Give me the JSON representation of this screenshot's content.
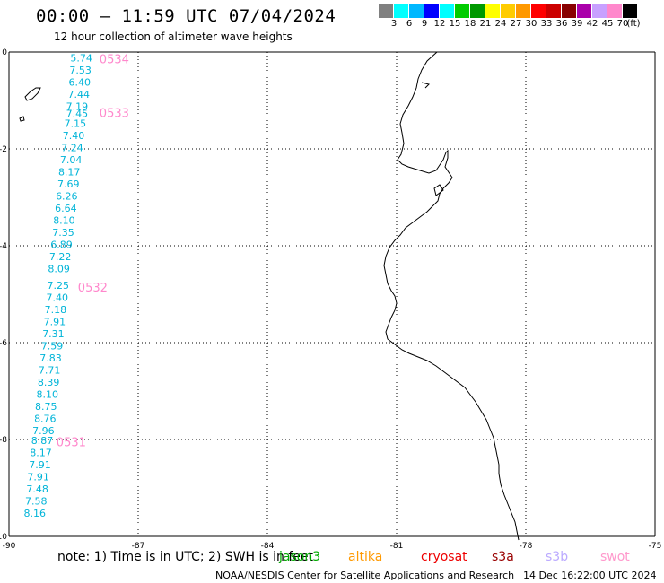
{
  "header": {
    "title": "00:00 – 11:59 UTC 07/04/2024",
    "subtitle": "12 hour collection of altimeter wave heights"
  },
  "legend": {
    "colors": [
      "#808080",
      "#00ffff",
      "#00b8ff",
      "#0000ff",
      "#00ffff",
      "#00cc00",
      "#009900",
      "#ffff00",
      "#ffcc00",
      "#ff9900",
      "#ff0000",
      "#cc0000",
      "#880000",
      "#aa00aa",
      "#c8a0ff",
      "#ff88cc",
      "#000000"
    ],
    "labels": [
      "3",
      "6",
      "9",
      "12",
      "15",
      "18",
      "21",
      "24",
      "27",
      "30",
      "33",
      "36",
      "39",
      "42",
      "45",
      "70",
      "(ft)"
    ]
  },
  "axes": {
    "x_ticks": [
      "-90",
      "-87",
      "-84",
      "-81",
      "-78",
      "-75"
    ],
    "y_ticks": [
      "0",
      "-2",
      "-4",
      "-6",
      "-8",
      "-10"
    ]
  },
  "track": {
    "color": "#00b4d8",
    "points": [
      {
        "lon": -88.32,
        "lat": -0.1,
        "v": "5.74"
      },
      {
        "lon": -88.34,
        "lat": -0.35,
        "v": "7.53"
      },
      {
        "lon": -88.36,
        "lat": -0.6,
        "v": "6.40"
      },
      {
        "lon": -88.38,
        "lat": -0.85,
        "v": "7.44"
      },
      {
        "lon": -88.42,
        "lat": -1.1,
        "v": "7.19"
      },
      {
        "lon": -88.42,
        "lat": -1.25,
        "v": "7.45"
      },
      {
        "lon": -88.46,
        "lat": -1.45,
        "v": "7.15"
      },
      {
        "lon": -88.5,
        "lat": -1.7,
        "v": "7.40"
      },
      {
        "lon": -88.53,
        "lat": -1.95,
        "v": "7.24"
      },
      {
        "lon": -88.56,
        "lat": -2.2,
        "v": "7.04"
      },
      {
        "lon": -88.6,
        "lat": -2.45,
        "v": "8.17"
      },
      {
        "lon": -88.62,
        "lat": -2.7,
        "v": "7.69"
      },
      {
        "lon": -88.66,
        "lat": -2.95,
        "v": "6.26"
      },
      {
        "lon": -88.68,
        "lat": -3.2,
        "v": "6.64"
      },
      {
        "lon": -88.72,
        "lat": -3.45,
        "v": "8.10"
      },
      {
        "lon": -88.74,
        "lat": -3.7,
        "v": "7.35"
      },
      {
        "lon": -88.78,
        "lat": -3.95,
        "v": "6.89"
      },
      {
        "lon": -88.81,
        "lat": -4.2,
        "v": "7.22"
      },
      {
        "lon": -88.84,
        "lat": -4.45,
        "v": "8.09"
      },
      {
        "lon": -88.86,
        "lat": -4.8,
        "v": "7.25"
      },
      {
        "lon": -88.88,
        "lat": -5.05,
        "v": "7.40"
      },
      {
        "lon": -88.92,
        "lat": -5.3,
        "v": "7.18"
      },
      {
        "lon": -88.94,
        "lat": -5.55,
        "v": "7.91"
      },
      {
        "lon": -88.97,
        "lat": -5.8,
        "v": "7.31"
      },
      {
        "lon": -89.0,
        "lat": -6.05,
        "v": "7.59"
      },
      {
        "lon": -89.03,
        "lat": -6.3,
        "v": "7.83"
      },
      {
        "lon": -89.06,
        "lat": -6.55,
        "v": "7.71"
      },
      {
        "lon": -89.08,
        "lat": -6.8,
        "v": "8.39"
      },
      {
        "lon": -89.11,
        "lat": -7.05,
        "v": "8.10"
      },
      {
        "lon": -89.14,
        "lat": -7.3,
        "v": "8.75"
      },
      {
        "lon": -89.16,
        "lat": -7.55,
        "v": "8.76"
      },
      {
        "lon": -89.2,
        "lat": -7.8,
        "v": "7.96"
      },
      {
        "lon": -89.23,
        "lat": -8.0,
        "v": "8.87"
      },
      {
        "lon": -89.26,
        "lat": -8.25,
        "v": "8.17"
      },
      {
        "lon": -89.28,
        "lat": -8.5,
        "v": "7.91"
      },
      {
        "lon": -89.32,
        "lat": -8.75,
        "v": "7.91"
      },
      {
        "lon": -89.34,
        "lat": -9.0,
        "v": "7.48"
      },
      {
        "lon": -89.37,
        "lat": -9.25,
        "v": "7.58"
      },
      {
        "lon": -89.4,
        "lat": -9.5,
        "v": "8.16"
      }
    ]
  },
  "time_labels": {
    "color": "#ff88cc",
    "items": [
      {
        "lon": -87.9,
        "lat": -0.12,
        "t": "0534"
      },
      {
        "lon": -87.9,
        "lat": -1.23,
        "t": "0533"
      },
      {
        "lon": -88.4,
        "lat": -4.83,
        "t": "0532"
      },
      {
        "lon": -88.9,
        "lat": -8.03,
        "t": "0531"
      }
    ]
  },
  "footer": {
    "note": "note:  1) Time is in UTC; 2) SWH is in feet",
    "missions": [
      {
        "name": "jason3",
        "color": "#00aa00"
      },
      {
        "name": "altika",
        "color": "#ff9900"
      },
      {
        "name": "cryosat",
        "color": "#ee0000"
      },
      {
        "name": "s3a",
        "color": "#990000"
      },
      {
        "name": "s3b",
        "color": "#bbaaff"
      },
      {
        "name": "swot",
        "color": "#ff99cc"
      }
    ],
    "credit": "NOAA/NESDIS Center for Satellite Applications and Research",
    "timestamp": "14 Dec 16:22:00 UTC 2024"
  }
}
